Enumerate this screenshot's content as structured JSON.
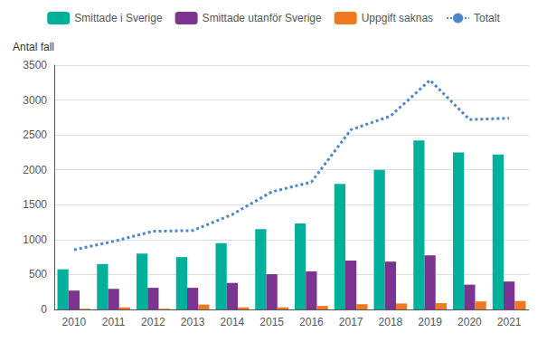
{
  "chart_data": {
    "type": "bar",
    "ylabel": "Antal fall",
    "categories": [
      "2010",
      "2011",
      "2012",
      "2013",
      "2014",
      "2015",
      "2016",
      "2017",
      "2018",
      "2019",
      "2020",
      "2021"
    ],
    "series": [
      {
        "name": "Smittade i Sverige",
        "type": "bar",
        "color": "#00b09a",
        "values": [
          575,
          650,
          800,
          750,
          950,
          1150,
          1230,
          1800,
          2000,
          2420,
          2250,
          2220
        ]
      },
      {
        "name": "Smittade utanför Sverige",
        "type": "bar",
        "color": "#7b3591",
        "values": [
          270,
          295,
          310,
          310,
          380,
          505,
          545,
          700,
          685,
          775,
          355,
          400
        ]
      },
      {
        "name": "Uppgift saknas",
        "type": "bar",
        "color": "#f07820",
        "values": [
          10,
          30,
          10,
          70,
          30,
          30,
          50,
          75,
          85,
          90,
          115,
          120
        ]
      },
      {
        "name": "Totalt",
        "type": "line",
        "color": "#4f86c8",
        "line_style": "dotted",
        "values": [
          855,
          975,
          1120,
          1130,
          1360,
          1685,
          1825,
          2575,
          2770,
          3285,
          2720,
          2740
        ]
      }
    ],
    "ylim": [
      0,
      3500
    ],
    "yticks": [
      0,
      500,
      1000,
      1500,
      2000,
      2500,
      3000,
      3500
    ],
    "grid": true,
    "legend": "top"
  }
}
